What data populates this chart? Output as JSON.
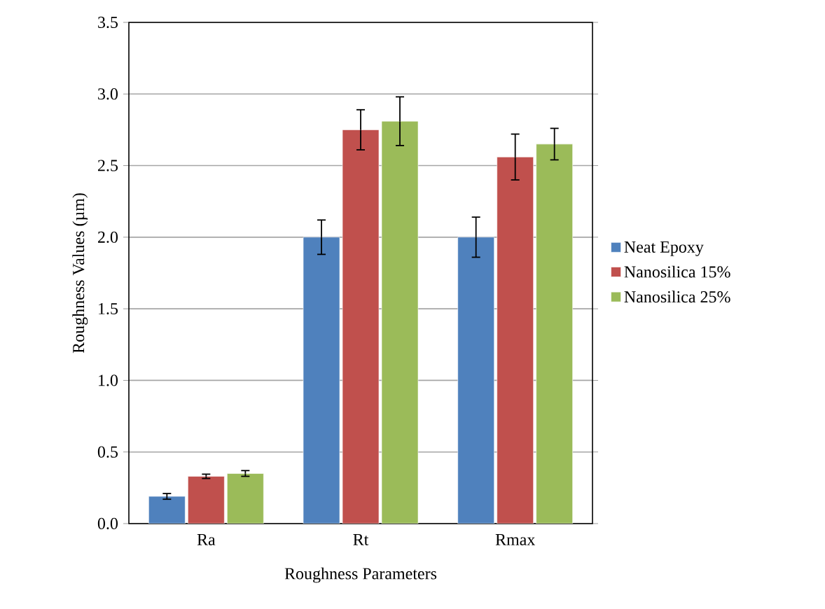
{
  "chart_data": {
    "type": "bar",
    "xlabel": "Roughness Parameters",
    "ylabel": "Roughness Values (µm)",
    "categories": [
      "Ra",
      "Rt",
      "Rmax"
    ],
    "series": [
      {
        "name": "Neat Epoxy",
        "color": "#4f81bd",
        "values": [
          0.19,
          2.0,
          2.0
        ],
        "errors": [
          0.02,
          0.12,
          0.14
        ]
      },
      {
        "name": "Nanosilica 15%",
        "color": "#c0504d",
        "values": [
          0.33,
          2.75,
          2.56
        ],
        "errors": [
          0.015,
          0.14,
          0.16
        ]
      },
      {
        "name": "Nanosilica 25%",
        "color": "#9bbb59",
        "values": [
          0.35,
          2.81,
          2.65
        ],
        "errors": [
          0.02,
          0.17,
          0.11
        ]
      }
    ],
    "ylim": [
      0,
      3.5
    ],
    "yticks": [
      {
        "value": 0,
        "label": "0.0"
      },
      {
        "value": 0.5,
        "label": "0.5"
      },
      {
        "value": 1,
        "label": "1.0"
      },
      {
        "value": 1.5,
        "label": "1.5"
      },
      {
        "value": 2,
        "label": "2.0"
      },
      {
        "value": 2.5,
        "label": "2.5"
      },
      {
        "value": 3,
        "label": "3.0"
      },
      {
        "value": 3.5,
        "label": "3.5"
      }
    ],
    "grid": "y",
    "legend": "right"
  }
}
